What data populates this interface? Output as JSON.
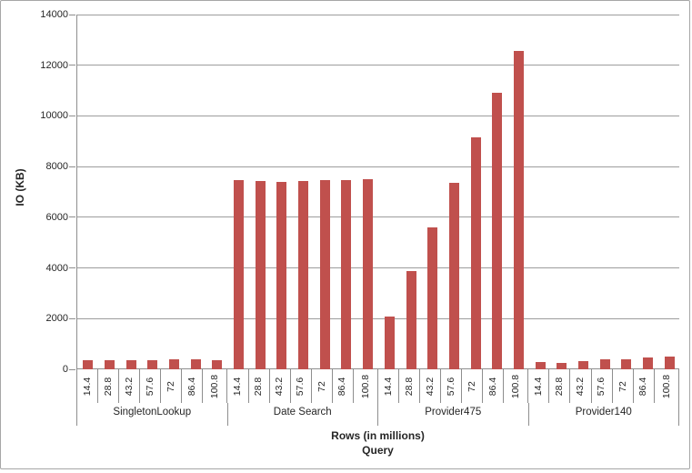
{
  "colors": {
    "bar": "#c0504d",
    "gridline": "#9d9d9d",
    "axis": "#8e8e8e",
    "text": "#262626",
    "border": "#a6a6a6",
    "background": "#ffffff"
  },
  "chart_data": {
    "type": "bar",
    "title": "",
    "ylabel": "IO (KB)",
    "xlabel_line1": "Rows (in millions)",
    "xlabel_line2": "Query",
    "ylim": [
      0,
      14000
    ],
    "yticks": [
      0,
      2000,
      4000,
      6000,
      8000,
      10000,
      12000,
      14000
    ],
    "grid": true,
    "legend_position": "none",
    "categories": [
      "14.4",
      "28.8",
      "43.2",
      "57.6",
      "72",
      "86.4",
      "100.8"
    ],
    "groups": [
      {
        "name": "SingletonLookup",
        "values": [
          350,
          355,
          360,
          360,
          395,
          400,
          365
        ]
      },
      {
        "name": "Date Search",
        "values": [
          7450,
          7430,
          7400,
          7420,
          7470,
          7470,
          7520
        ]
      },
      {
        "name": "Provider475",
        "values": [
          2100,
          3870,
          5600,
          7350,
          9150,
          10900,
          12550
        ]
      },
      {
        "name": "Provider140",
        "values": [
          280,
          255,
          335,
          385,
          410,
          455,
          490
        ]
      }
    ]
  }
}
